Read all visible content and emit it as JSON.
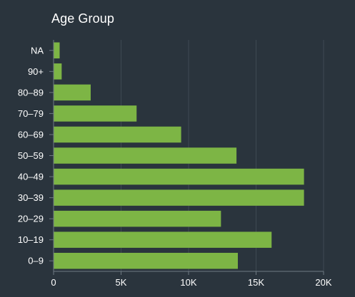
{
  "chart_data": {
    "type": "bar",
    "orientation": "horizontal",
    "title": "Age Group",
    "xlabel": "",
    "ylabel": "",
    "categories": [
      "NA",
      "90+",
      "80–89",
      "70–79",
      "60–69",
      "50–59",
      "40–49",
      "30–39",
      "20–29",
      "10–19",
      "0–9"
    ],
    "values": [
      450,
      600,
      2750,
      6150,
      9450,
      13550,
      18550,
      18550,
      12400,
      16150,
      13650
    ],
    "xlim": [
      0,
      20000
    ],
    "xticks": [
      0,
      5000,
      10000,
      15000,
      20000
    ],
    "xtick_labels": [
      "0",
      "5K",
      "10K",
      "15K",
      "20K"
    ],
    "grid": "vertical",
    "legend": "none"
  },
  "colors": {
    "background": "#2a343d",
    "bar": "#7db545",
    "grid": "#3e4952",
    "axis": "#6f7a83",
    "text": "#ffffff"
  }
}
